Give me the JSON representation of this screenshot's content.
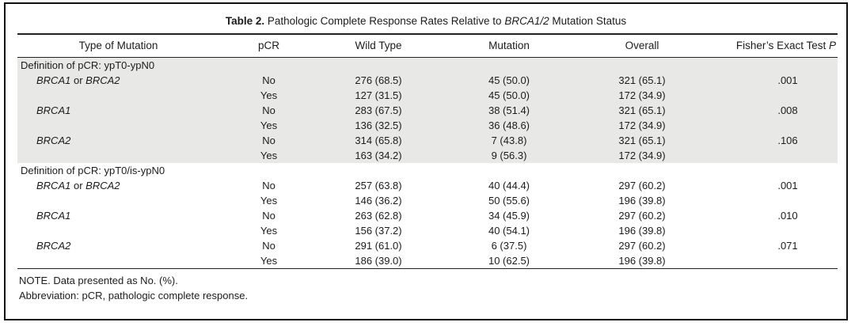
{
  "table": {
    "title": {
      "label": "Table 2.",
      "text_before_italic": "Pathologic Complete Response Rates Relative to",
      "italic": "BRCA1/2",
      "text_after_italic": "Mutation Status"
    },
    "columns": [
      "Type of Mutation",
      "pCR",
      "Wild Type",
      "Mutation",
      "Overall"
    ],
    "fisher_column": {
      "text": "Fisher’s Exact Test",
      "italic": "P"
    },
    "sections": [
      {
        "label": "Definition of pCR: ypT0-ypN0",
        "shaded": true,
        "rows": [
          {
            "mutation_type": "BRCA1 or BRCA2",
            "pcr": "No",
            "wild_type": "276 (68.5)",
            "mutation": "45 (50.0)",
            "overall": "321 (65.1)",
            "p": ".001"
          },
          {
            "mutation_type": "",
            "pcr": "Yes",
            "wild_type": "127 (31.5)",
            "mutation": "45 (50.0)",
            "overall": "172 (34.9)",
            "p": ""
          },
          {
            "mutation_type": "BRCA1",
            "pcr": "No",
            "wild_type": "283 (67.5)",
            "mutation": "38 (51.4)",
            "overall": "321 (65.1)",
            "p": ".008"
          },
          {
            "mutation_type": "",
            "pcr": "Yes",
            "wild_type": "136 (32.5)",
            "mutation": "36 (48.6)",
            "overall": "172 (34.9)",
            "p": ""
          },
          {
            "mutation_type": "BRCA2",
            "pcr": "No",
            "wild_type": "314 (65.8)",
            "mutation": "7 (43.8)",
            "overall": "321 (65.1)",
            "p": ".106"
          },
          {
            "mutation_type": "",
            "pcr": "Yes",
            "wild_type": "163 (34.2)",
            "mutation": "9 (56.3)",
            "overall": "172 (34.9)",
            "p": ""
          }
        ]
      },
      {
        "label": "Definition of pCR: ypT0/is-ypN0",
        "shaded": false,
        "rows": [
          {
            "mutation_type": "BRCA1 or BRCA2",
            "pcr": "No",
            "wild_type": "257 (63.8)",
            "mutation": "40 (44.4)",
            "overall": "297 (60.2)",
            "p": ".001"
          },
          {
            "mutation_type": "",
            "pcr": "Yes",
            "wild_type": "146 (36.2)",
            "mutation": "50 (55.6)",
            "overall": "196 (39.8)",
            "p": ""
          },
          {
            "mutation_type": "BRCA1",
            "pcr": "No",
            "wild_type": "263 (62.8)",
            "mutation": "34 (45.9)",
            "overall": "297 (60.2)",
            "p": ".010"
          },
          {
            "mutation_type": "",
            "pcr": "Yes",
            "wild_type": "156 (37.2)",
            "mutation": "40 (54.1)",
            "overall": "196 (39.8)",
            "p": ""
          },
          {
            "mutation_type": "BRCA2",
            "pcr": "No",
            "wild_type": "291 (61.0)",
            "mutation": "6 (37.5)",
            "overall": "297 (60.2)",
            "p": ".071"
          },
          {
            "mutation_type": "",
            "pcr": "Yes",
            "wild_type": "186 (39.0)",
            "mutation": "10 (62.5)",
            "overall": "196 (39.8)",
            "p": ""
          }
        ]
      }
    ],
    "notes": [
      "NOTE. Data presented as No. (%).",
      "Abbreviation: pCR, pathologic complete response."
    ],
    "colors": {
      "shaded_row_bg": "#e8e8e7",
      "rule": "#222222",
      "frame_border": "#111111",
      "text": "#1c1c1c"
    }
  }
}
